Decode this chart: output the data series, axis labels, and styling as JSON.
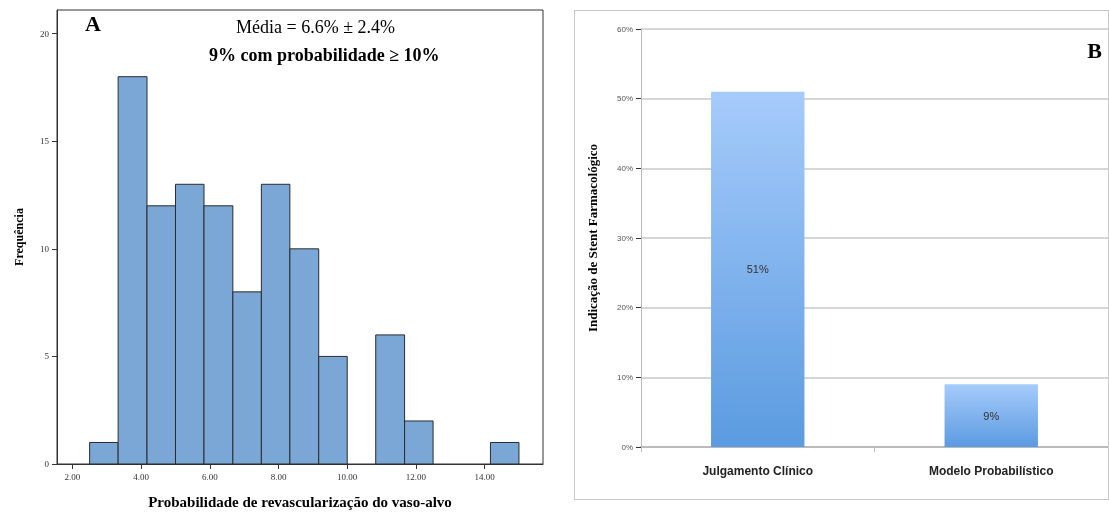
{
  "chart_data": [
    {
      "type": "histogram",
      "xlabel": "Probabilidade de revascularização do vaso-alvo",
      "ylabel": "Frequência",
      "color": "#7ba7d6",
      "annotations": [
        "A",
        "Média = 6.6% ± 2.4%",
        "9% com probabilidade ≥ 10%"
      ],
      "bins": [
        2.5,
        3.33,
        4.17,
        5,
        5.83,
        6.67,
        7.5,
        8.33,
        9.17,
        10,
        10.83,
        11.67,
        12.5,
        13.33,
        14.17,
        15
      ],
      "values": [
        1,
        18,
        12,
        13,
        12,
        8,
        13,
        10,
        5,
        0,
        6,
        2,
        0,
        0,
        1
      ],
      "xlim": [
        1.55,
        15.7
      ],
      "xticks": [
        {
          "value": 2,
          "label": "2.00"
        },
        {
          "value": 4,
          "label": "4.00"
        },
        {
          "value": 6,
          "label": "6.00"
        },
        {
          "value": 8,
          "label": "8.00"
        },
        {
          "value": 10,
          "label": "10.00"
        },
        {
          "value": 12,
          "label": "12.00"
        },
        {
          "value": 14,
          "label": "14.00"
        }
      ],
      "ylim": [
        0,
        21.1
      ],
      "yticks": [
        0,
        5,
        10,
        15,
        20
      ],
      "grid": false
    },
    {
      "type": "bar",
      "ylabel": "Indicação de Stent Farmacológico",
      "color": "#5b9be0",
      "annotations": [
        "B"
      ],
      "categories": [
        "Julgamento Clínico",
        "Modelo Probabilístico"
      ],
      "values": [
        51,
        9
      ],
      "value_labels": [
        "51%",
        "9%"
      ],
      "ylim": [
        0,
        60
      ],
      "yticks": [
        {
          "value": 0,
          "label": "0%"
        },
        {
          "value": 10,
          "label": "10%"
        },
        {
          "value": 20,
          "label": "20%"
        },
        {
          "value": 30,
          "label": "30%"
        },
        {
          "value": 40,
          "label": "40%"
        },
        {
          "value": 50,
          "label": "50%"
        },
        {
          "value": 60,
          "label": "60%"
        }
      ],
      "grid": "y"
    }
  ]
}
